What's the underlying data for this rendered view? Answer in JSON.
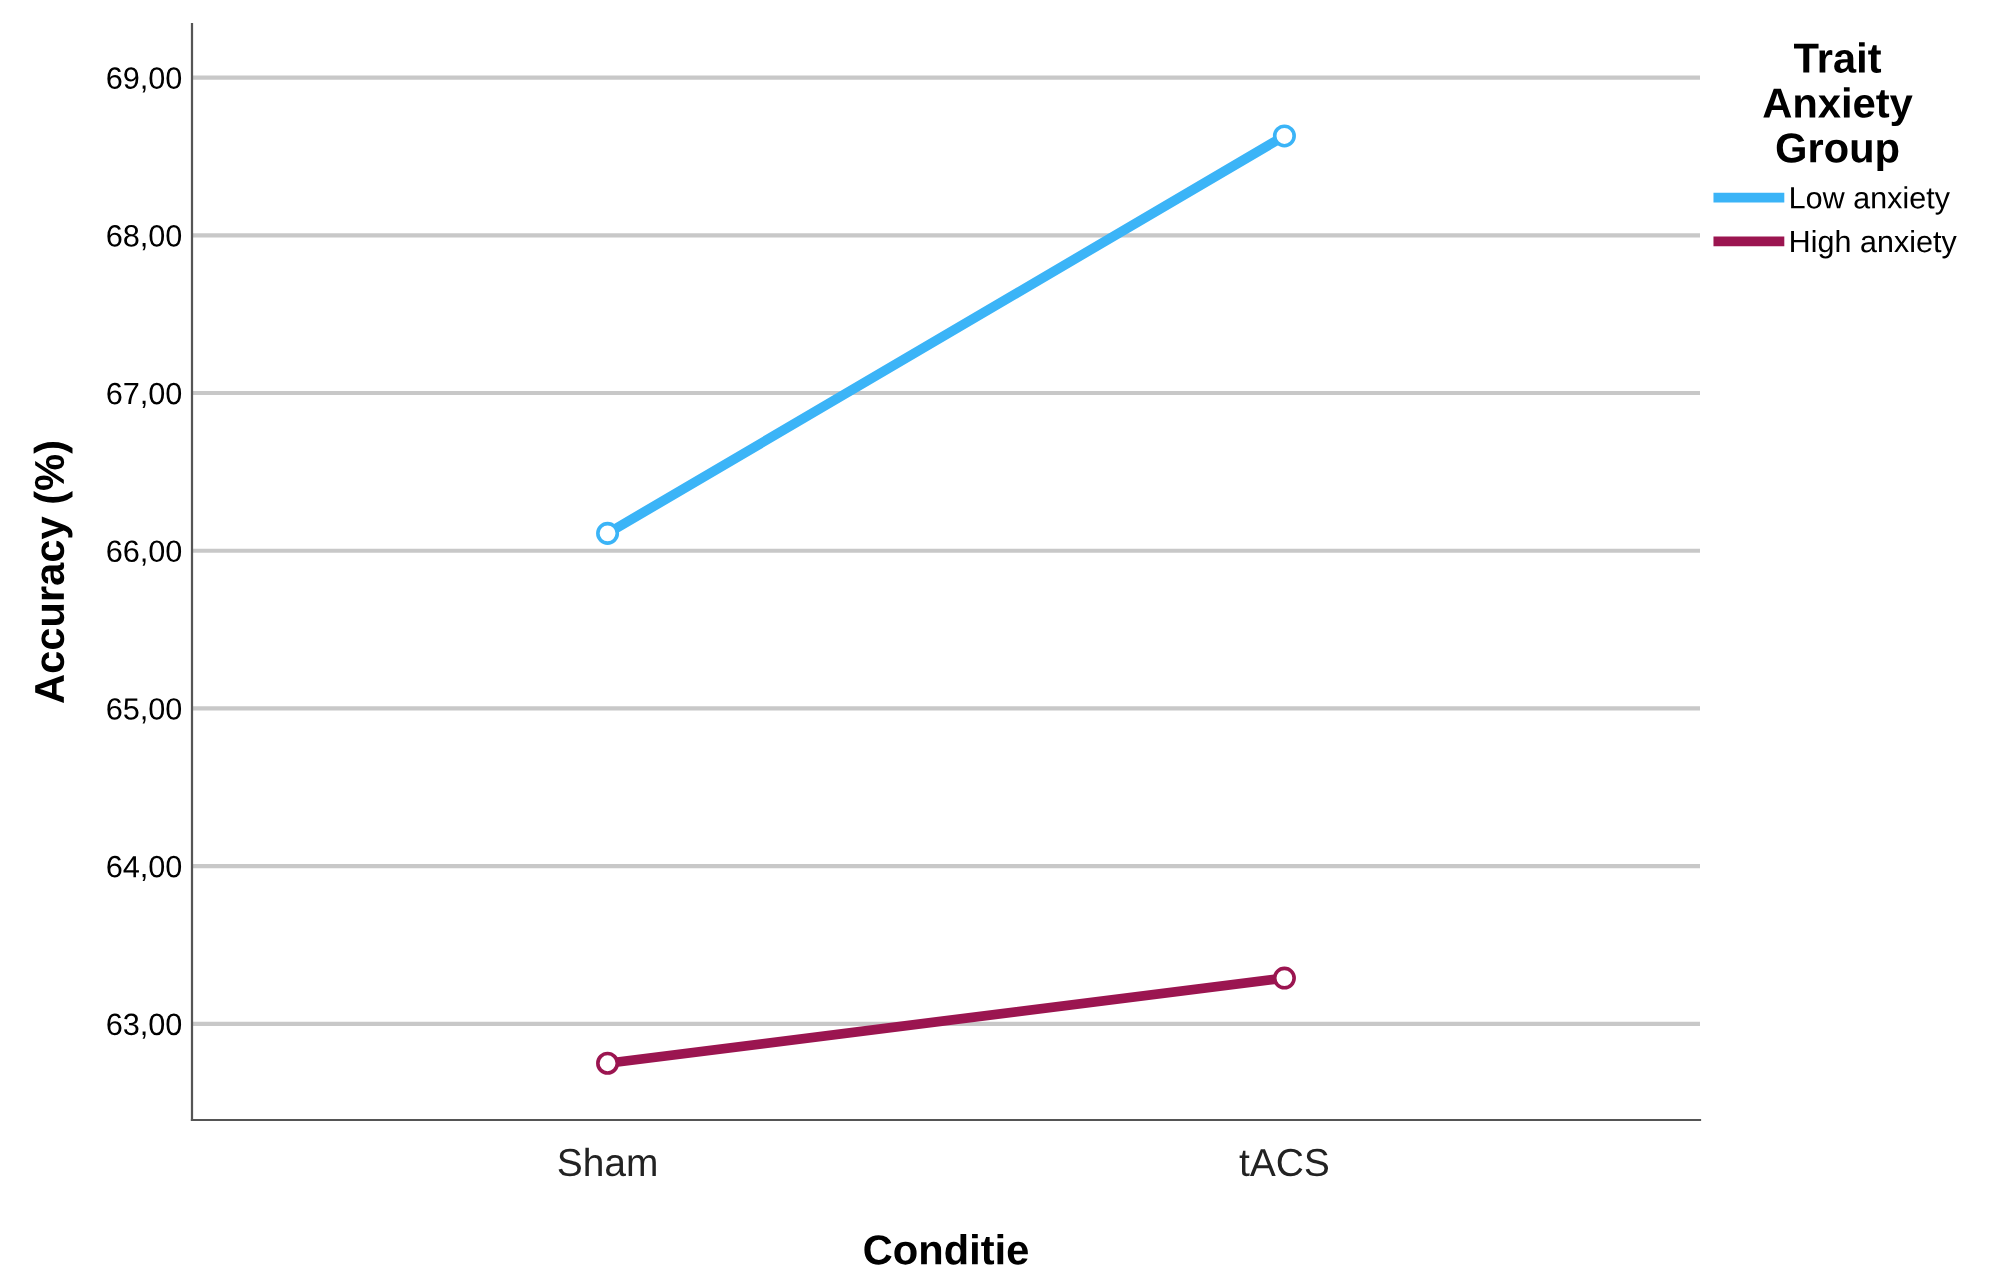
{
  "chart_data": {
    "type": "line",
    "xlabel": "Conditie",
    "ylabel": "Accuracy (%)",
    "legend_title": "Trait\nAnxiety\nGroup",
    "categories": [
      "Sham",
      "tACS"
    ],
    "series": [
      {
        "name": "Low anxiety",
        "color": "#3bb4f7",
        "values": [
          66.11,
          68.63
        ]
      },
      {
        "name": "High anxiety",
        "color": "#9b1550",
        "values": [
          62.75,
          63.29
        ]
      }
    ],
    "ylim": [
      62.39,
      69.34
    ],
    "yticks": [
      {
        "value": 63,
        "label": "63,00"
      },
      {
        "value": 64,
        "label": "64,00"
      },
      {
        "value": 65,
        "label": "65,00"
      },
      {
        "value": 66,
        "label": "66,00"
      },
      {
        "value": 67,
        "label": "67,00"
      },
      {
        "value": 68,
        "label": "68,00"
      },
      {
        "value": 69,
        "label": "69,00"
      }
    ],
    "grid": "y",
    "legend": "right",
    "marker": "circle",
    "line_style": "solid"
  }
}
